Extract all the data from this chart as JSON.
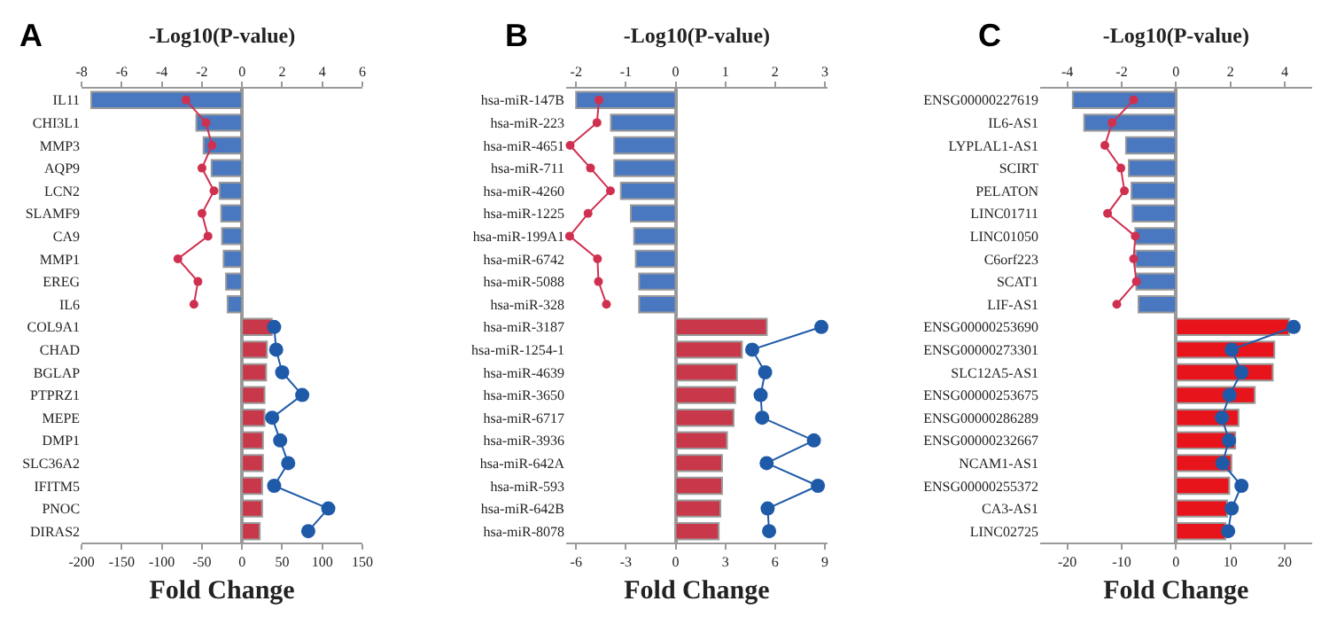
{
  "chart_data": [
    {
      "type": "bar",
      "orientation": "horizontal",
      "annotations": [
        "A"
      ],
      "xlabel": "Fold Change",
      "x2label": "-Log10(P-value)",
      "marker": "circle",
      "categories": [
        "IL11",
        "CHI3L1",
        "MMP3",
        "AQP9",
        "LCN2",
        "SLAMF9",
        "CA9",
        "MMP1",
        "EREG",
        "IL6",
        "COL9A1",
        "CHAD",
        "BGLAP",
        "PTPRZ1",
        "MEPE",
        "DMP1",
        "SLC36A2",
        "IFITM5",
        "PNOC",
        "DIRAS2"
      ],
      "xlim": [
        -200,
        150
      ],
      "xticks": [
        -200,
        -150,
        -100,
        -50,
        0,
        50,
        100,
        150
      ],
      "x2lim": [
        -8,
        6
      ],
      "x2ticks": [
        -8,
        -6,
        -4,
        -2,
        0,
        2,
        4,
        6
      ],
      "series": [
        {
          "values": [
            -188,
            -57,
            -48,
            -38,
            -28,
            -26,
            -25,
            -23,
            -20,
            -18,
            37,
            31,
            30,
            28,
            28,
            26,
            26,
            25,
            25,
            22
          ],
          "colors": [
            "#4a78c0",
            "#4a78c0",
            "#4a78c0",
            "#4a78c0",
            "#4a78c0",
            "#4a78c0",
            "#4a78c0",
            "#4a78c0",
            "#4a78c0",
            "#4a78c0",
            "#c8384a",
            "#c8384a",
            "#c8384a",
            "#c8384a",
            "#c8384a",
            "#c8384a",
            "#c8384a",
            "#c8384a",
            "#c8384a",
            "#c8384a"
          ]
        },
        {
          "type": "line",
          "axis": "x2",
          "color": "#d03050",
          "values": [
            -2.8,
            -1.8,
            -1.5,
            -2.0,
            -1.4,
            -2.0,
            -1.7,
            -3.2,
            -2.2,
            -2.4,
            null,
            null,
            null,
            null,
            null,
            null,
            null,
            null,
            null,
            null
          ]
        },
        {
          "type": "line",
          "axis": "x2",
          "color": "#1f5aa8",
          "values": [
            null,
            null,
            null,
            null,
            null,
            null,
            null,
            null,
            null,
            null,
            1.6,
            1.7,
            2.0,
            3.0,
            1.5,
            1.9,
            2.3,
            1.6,
            4.3,
            3.3
          ]
        }
      ]
    },
    {
      "type": "bar",
      "orientation": "horizontal",
      "annotations": [
        "B"
      ],
      "xlabel": "Fold Change",
      "x2label": "-Log10(P-value)",
      "marker": "circle",
      "categories": [
        "hsa-miR-147B",
        "hsa-miR-223",
        "hsa-miR-4651",
        "hsa-miR-711",
        "hsa-miR-4260",
        "hsa-miR-1225",
        "hsa-miR-199A1",
        "hsa-miR-6742",
        "hsa-miR-5088",
        "hsa-miR-328",
        "hsa-miR-3187",
        "hsa-miR-1254-1",
        "hsa-miR-4639",
        "hsa-miR-3650",
        "hsa-miR-6717",
        "hsa-miR-3936",
        "hsa-miR-642A",
        "hsa-miR-593",
        "hsa-miR-642B",
        "hsa-miR-8078"
      ],
      "xlim": [
        -6.6,
        9.15
      ],
      "xticks": [
        -6,
        -3,
        0,
        3,
        6,
        9
      ],
      "x2lim": [
        -2.2,
        3.05
      ],
      "x2ticks": [
        -2,
        -1,
        0,
        1,
        2,
        3
      ],
      "series": [
        {
          "values": [
            -6.0,
            -3.9,
            -3.7,
            -3.7,
            -3.3,
            -2.7,
            -2.5,
            -2.4,
            -2.2,
            -2.2,
            5.5,
            4.0,
            3.7,
            3.6,
            3.5,
            3.1,
            2.8,
            2.8,
            2.7,
            2.6
          ],
          "colors": [
            "#4a78c0",
            "#4a78c0",
            "#4a78c0",
            "#4a78c0",
            "#4a78c0",
            "#4a78c0",
            "#4a78c0",
            "#4a78c0",
            "#4a78c0",
            "#4a78c0",
            "#c8384a",
            "#c8384a",
            "#c8384a",
            "#c8384a",
            "#c8384a",
            "#c8384a",
            "#c8384a",
            "#c8384a",
            "#c8384a",
            "#c8384a"
          ]
        },
        {
          "type": "line",
          "axis": "x2",
          "color": "#d03050",
          "values": [
            -1.54,
            -1.58,
            -2.12,
            -1.71,
            -1.31,
            -1.76,
            -2.13,
            -1.57,
            -1.55,
            -1.39,
            null,
            null,
            null,
            null,
            null,
            null,
            null,
            null,
            null,
            null
          ]
        },
        {
          "type": "line",
          "axis": "x2",
          "color": "#1f5aa8",
          "values": [
            null,
            null,
            null,
            null,
            null,
            null,
            null,
            null,
            null,
            null,
            2.93,
            1.54,
            1.8,
            1.71,
            1.74,
            2.78,
            1.83,
            2.86,
            1.85,
            1.88
          ]
        }
      ]
    },
    {
      "type": "bar",
      "orientation": "horizontal",
      "annotations": [
        "C"
      ],
      "xlabel": "Fold Change",
      "x2label": "-Log10(P-value)",
      "marker": "circle",
      "categories": [
        "ENSG00000227619",
        "IL6-AS1",
        "LYPLAL1-AS1",
        "SCIRT",
        "PELATON",
        "LINC01711",
        "LINC01050",
        "C6orf223",
        "SCAT1",
        "LIF-AS1",
        "ENSG00000253690",
        "ENSG00000273301",
        "SLC12A5-AS1",
        "ENSG00000253675",
        "ENSG00000286289",
        "ENSG00000232667",
        "NCAM1-AS1",
        "ENSG00000255372",
        "CA3-AS1",
        "LINC02725"
      ],
      "xlim": [
        -25,
        25
      ],
      "xticks": [
        -20,
        -10,
        0,
        10,
        20
      ],
      "x2lim": [
        -5,
        5
      ],
      "x2ticks": [
        -4,
        -2,
        0,
        2,
        4
      ],
      "series": [
        {
          "values": [
            -19.0,
            -16.9,
            -9.2,
            -8.7,
            -8.2,
            -8.0,
            -7.5,
            -7.4,
            -7.3,
            -6.9,
            20.8,
            18.1,
            17.8,
            14.5,
            11.5,
            10.9,
            10.2,
            9.8,
            9.4,
            9.1
          ],
          "colors": [
            "#4a78c0",
            "#4a78c0",
            "#4a78c0",
            "#4a78c0",
            "#4a78c0",
            "#4a78c0",
            "#4a78c0",
            "#4a78c0",
            "#4a78c0",
            "#4a78c0",
            "#e8141c",
            "#e8141c",
            "#e8141c",
            "#e8141c",
            "#e8141c",
            "#e8141c",
            "#e8141c",
            "#e8141c",
            "#e8141c",
            "#e8141c"
          ]
        },
        {
          "type": "line",
          "axis": "x2",
          "color": "#d03050",
          "values": [
            -1.56,
            -2.35,
            -2.62,
            -2.03,
            -1.9,
            -2.52,
            -1.5,
            -1.56,
            -1.46,
            -2.18,
            null,
            null,
            null,
            null,
            null,
            null,
            null,
            null,
            null,
            null
          ]
        },
        {
          "type": "line",
          "axis": "x2",
          "color": "#1f5aa8",
          "values": [
            null,
            null,
            null,
            null,
            null,
            null,
            null,
            null,
            null,
            null,
            4.33,
            2.05,
            2.41,
            1.97,
            1.69,
            1.95,
            1.71,
            2.41,
            2.05,
            1.92
          ]
        }
      ]
    }
  ]
}
